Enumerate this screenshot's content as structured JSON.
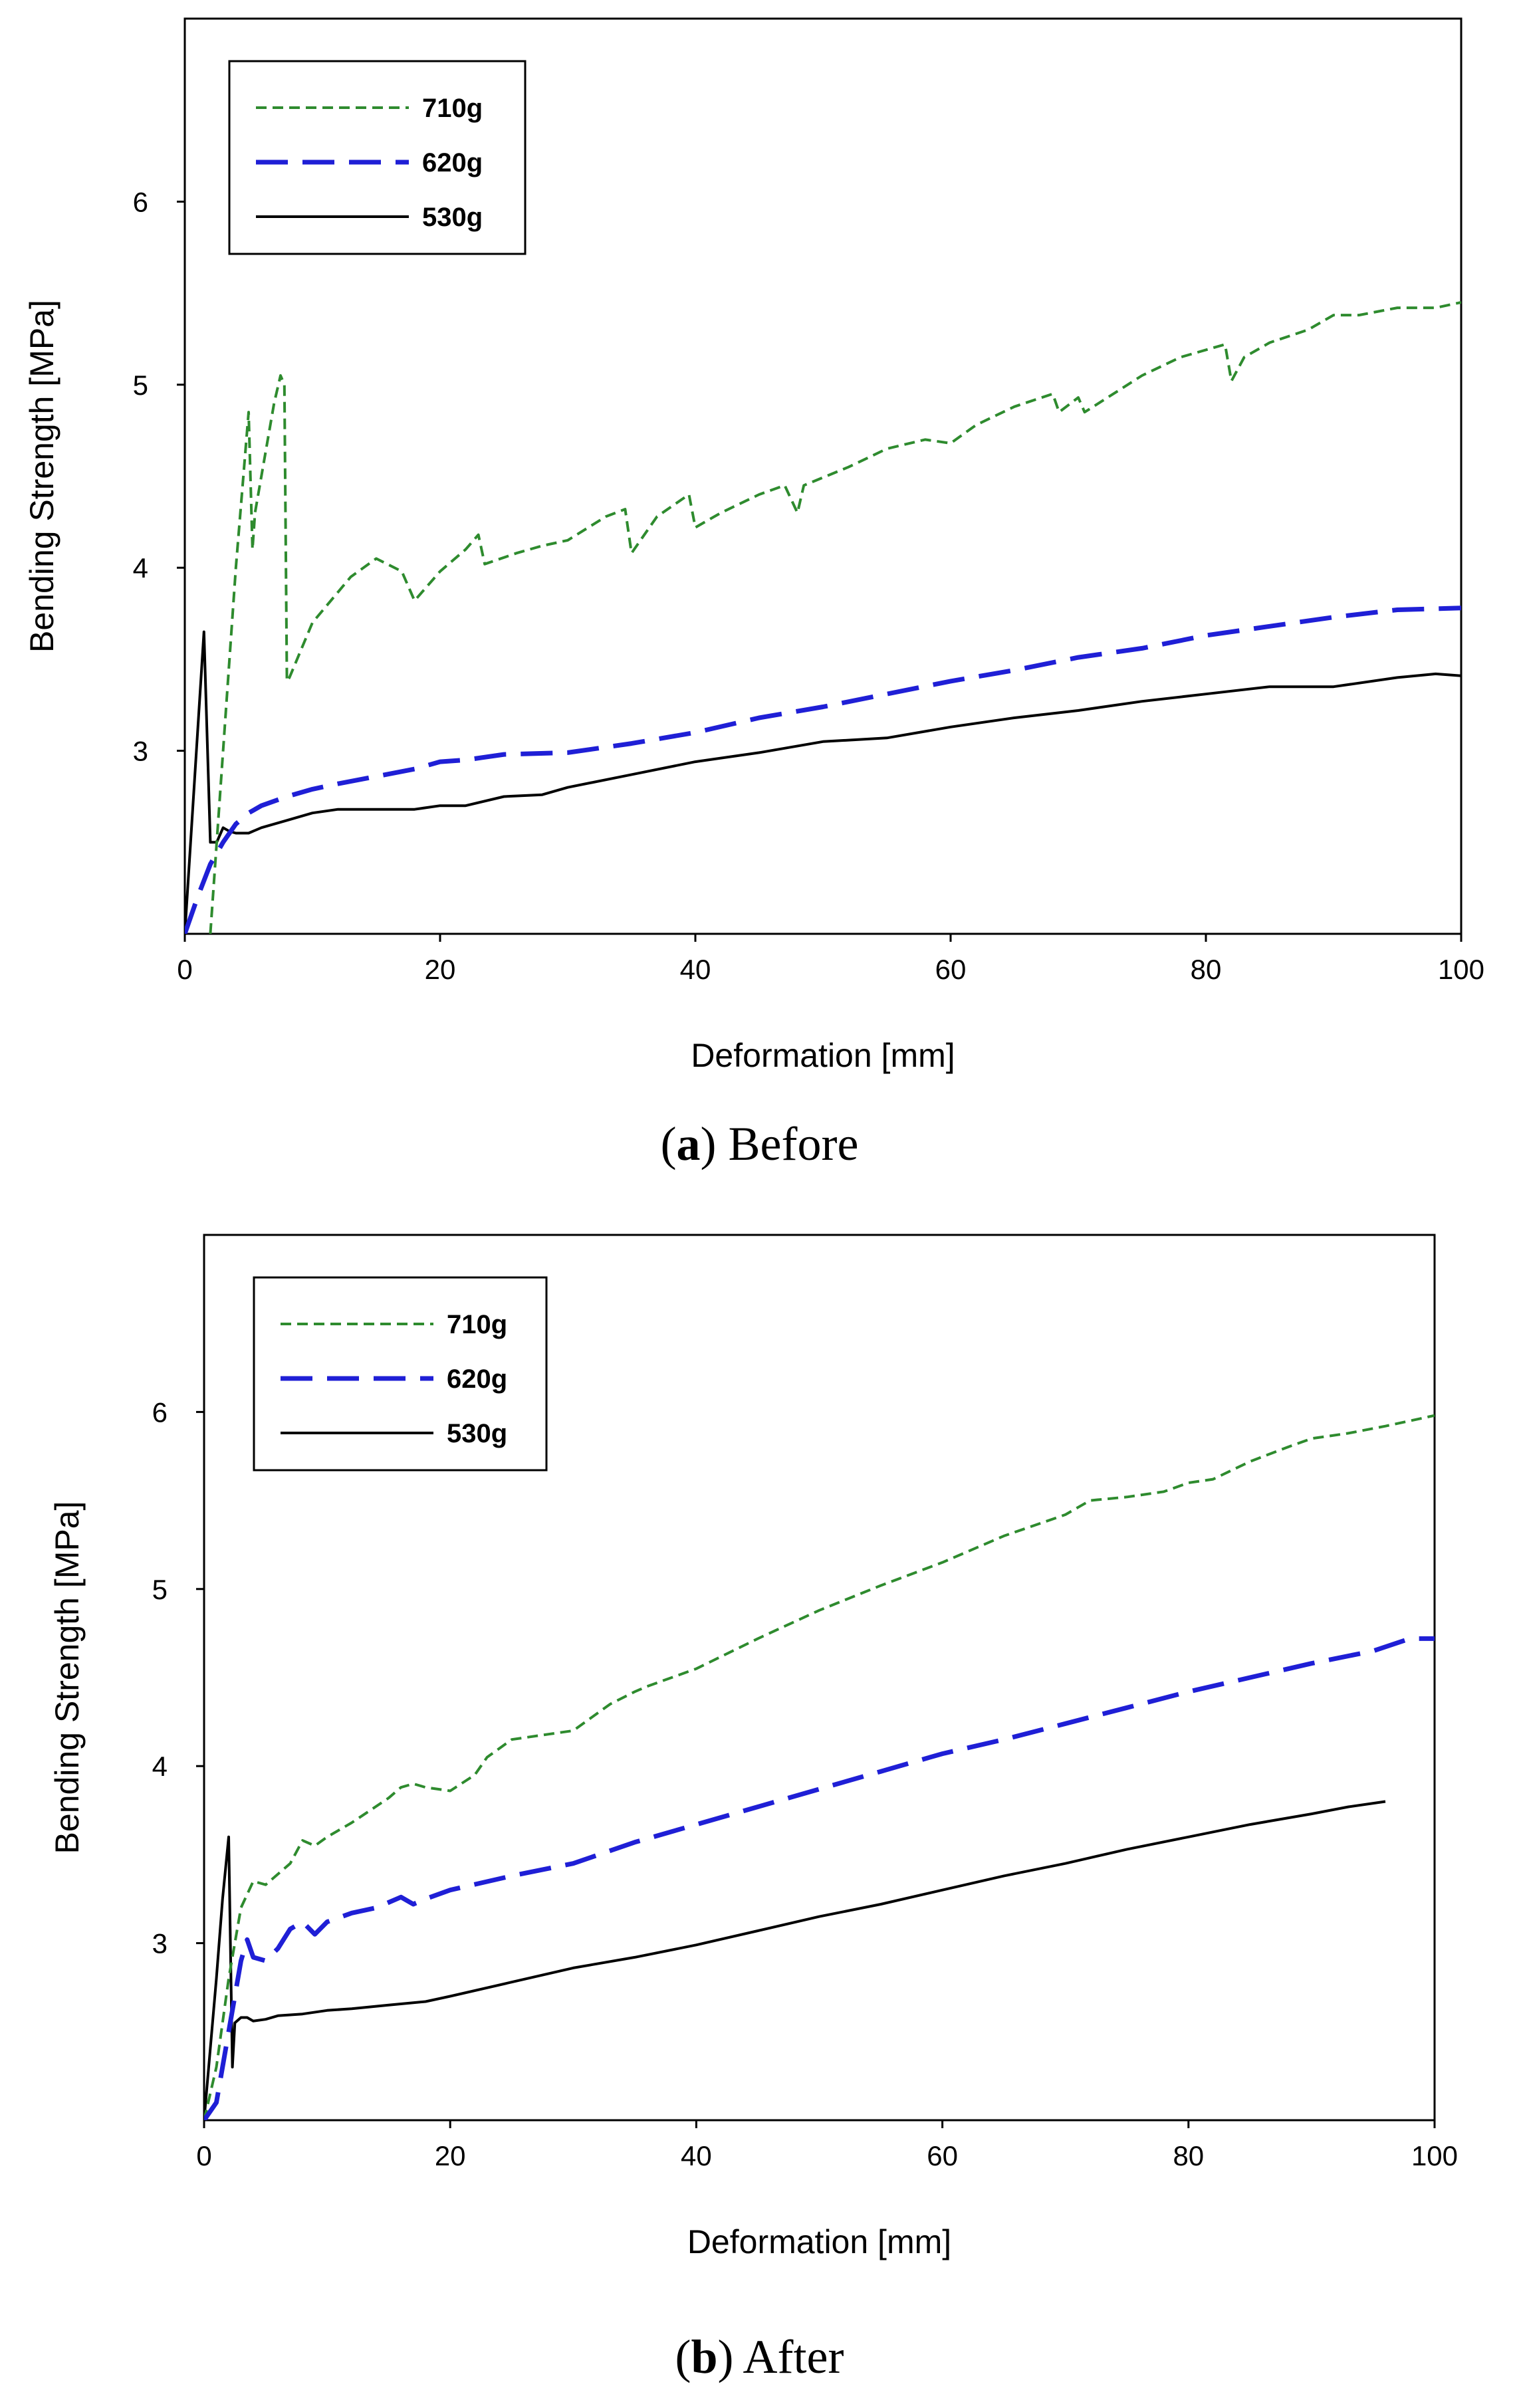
{
  "chart_data": [
    {
      "type": "line",
      "caption_letter": "a",
      "caption_text": " Before",
      "xlabel": "Deformation [mm]",
      "ylabel": "Bending Strength [MPa]",
      "xlim": [
        0,
        100
      ],
      "ylim": [
        2,
        7
      ],
      "xticks": [
        0,
        20,
        40,
        60,
        80,
        100
      ],
      "yticks": [
        3,
        4,
        5,
        6
      ],
      "legend_position": "top-left",
      "series": [
        {
          "name": "710g",
          "color": "#2e8b2e",
          "style": "dashed-fine",
          "x": [
            2,
            3,
            4,
            5,
            5.3,
            5.5,
            6,
            7,
            7.5,
            7.8,
            8,
            8.2,
            10,
            13,
            15,
            17,
            18,
            20,
            22,
            23,
            23.5,
            26,
            28,
            30,
            33,
            34.5,
            35,
            37,
            39.5,
            40,
            42,
            45,
            47,
            48,
            48.5,
            52,
            55,
            58,
            60,
            62,
            65,
            68,
            68.5,
            70,
            70.5,
            75,
            78,
            81.5,
            82,
            83,
            85,
            88,
            90,
            92,
            95,
            98,
            100
          ],
          "y": [
            2.0,
            3.0,
            4.0,
            4.85,
            4.1,
            4.3,
            4.5,
            4.9,
            5.05,
            5.0,
            3.38,
            3.4,
            3.7,
            3.95,
            4.05,
            3.98,
            3.82,
            3.98,
            4.1,
            4.18,
            4.02,
            4.08,
            4.12,
            4.15,
            4.28,
            4.32,
            4.08,
            4.28,
            4.4,
            4.22,
            4.3,
            4.4,
            4.45,
            4.3,
            4.45,
            4.55,
            4.65,
            4.7,
            4.68,
            4.78,
            4.88,
            4.95,
            4.85,
            4.93,
            4.85,
            5.05,
            5.15,
            5.22,
            5.02,
            5.15,
            5.23,
            5.3,
            5.38,
            5.38,
            5.42,
            5.42,
            5.45
          ]
        },
        {
          "name": "620g",
          "color": "#1f1fd6",
          "style": "dashed-long",
          "x": [
            0,
            1,
            2,
            3,
            4,
            5,
            6,
            8,
            10,
            12,
            15,
            18,
            20,
            22,
            25,
            30,
            35,
            40,
            45,
            50,
            55,
            60,
            65,
            70,
            75,
            80,
            85,
            90,
            95,
            100
          ],
          "y": [
            2.0,
            2.2,
            2.38,
            2.5,
            2.6,
            2.66,
            2.7,
            2.75,
            2.79,
            2.82,
            2.86,
            2.9,
            2.94,
            2.95,
            2.98,
            2.99,
            3.04,
            3.1,
            3.18,
            3.24,
            3.31,
            3.38,
            3.44,
            3.51,
            3.56,
            3.63,
            3.68,
            3.73,
            3.77,
            3.78
          ]
        },
        {
          "name": "530g",
          "color": "#000000",
          "style": "solid",
          "x": [
            0,
            1,
            1.5,
            2,
            2.5,
            3,
            3.5,
            4,
            5,
            6,
            8,
            10,
            12,
            15,
            18,
            20,
            22,
            25,
            28,
            30,
            35,
            40,
            45,
            50,
            55,
            60,
            65,
            70,
            75,
            80,
            85,
            90,
            95,
            98,
            100
          ],
          "y": [
            2.0,
            3.1,
            3.65,
            2.5,
            2.5,
            2.58,
            2.56,
            2.55,
            2.55,
            2.58,
            2.62,
            2.66,
            2.68,
            2.68,
            2.68,
            2.7,
            2.7,
            2.75,
            2.76,
            2.8,
            2.87,
            2.94,
            2.99,
            3.05,
            3.07,
            3.13,
            3.18,
            3.22,
            3.27,
            3.31,
            3.35,
            3.35,
            3.4,
            3.42,
            3.41
          ]
        }
      ]
    },
    {
      "type": "line",
      "caption_letter": "b",
      "caption_text": " After",
      "xlabel": "Deformation [mm]",
      "ylabel": "Bending Strength [MPa]",
      "xlim": [
        0,
        100
      ],
      "ylim": [
        2,
        7
      ],
      "xticks": [
        0,
        20,
        40,
        60,
        80,
        100
      ],
      "yticks": [
        3,
        4,
        5,
        6
      ],
      "legend_position": "top-left",
      "series": [
        {
          "name": "710g",
          "color": "#2e8b2e",
          "style": "dashed-fine",
          "x": [
            0,
            1,
            2,
            3,
            4,
            5,
            7,
            8,
            9,
            10,
            12,
            15,
            16,
            17,
            18,
            20,
            22,
            23,
            25,
            28,
            30,
            33,
            35,
            36,
            40,
            45,
            50,
            55,
            60,
            65,
            70,
            72,
            75,
            78,
            80,
            82,
            85,
            88,
            90,
            93,
            96,
            100
          ],
          "y": [
            2.0,
            2.3,
            2.8,
            3.2,
            3.35,
            3.33,
            3.45,
            3.58,
            3.55,
            3.6,
            3.68,
            3.82,
            3.88,
            3.9,
            3.88,
            3.86,
            3.95,
            4.05,
            4.15,
            4.18,
            4.2,
            4.35,
            4.42,
            4.45,
            4.55,
            4.72,
            4.88,
            5.02,
            5.15,
            5.3,
            5.42,
            5.5,
            5.52,
            5.55,
            5.6,
            5.62,
            5.72,
            5.8,
            5.85,
            5.88,
            5.92,
            5.98
          ]
        },
        {
          "name": "620g",
          "color": "#1f1fd6",
          "style": "dashed-long",
          "x": [
            0,
            1,
            2,
            3,
            3.5,
            4,
            5,
            6,
            7,
            8,
            9,
            10,
            12,
            14,
            16,
            17,
            18,
            20,
            25,
            30,
            35,
            40,
            45,
            50,
            55,
            60,
            65,
            70,
            75,
            80,
            85,
            90,
            95,
            98,
            100
          ],
          "y": [
            2.0,
            2.1,
            2.5,
            2.9,
            3.02,
            2.92,
            2.9,
            2.97,
            3.08,
            3.12,
            3.05,
            3.12,
            3.17,
            3.2,
            3.26,
            3.22,
            3.25,
            3.3,
            3.38,
            3.45,
            3.57,
            3.67,
            3.77,
            3.87,
            3.97,
            4.07,
            4.15,
            4.24,
            4.33,
            4.42,
            4.5,
            4.58,
            4.65,
            4.72,
            4.72
          ]
        },
        {
          "name": "530g",
          "color": "#000000",
          "style": "solid",
          "x": [
            0,
            1,
            1.5,
            2,
            2.3,
            2.5,
            3,
            3.5,
            4,
            5,
            6,
            8,
            10,
            12,
            15,
            18,
            20,
            25,
            30,
            35,
            40,
            45,
            50,
            55,
            60,
            65,
            70,
            75,
            80,
            85,
            90,
            93,
            96
          ],
          "y": [
            2.0,
            2.8,
            3.25,
            3.6,
            2.3,
            2.55,
            2.58,
            2.58,
            2.56,
            2.57,
            2.59,
            2.6,
            2.62,
            2.63,
            2.65,
            2.67,
            2.7,
            2.78,
            2.86,
            2.92,
            2.99,
            3.07,
            3.15,
            3.22,
            3.3,
            3.38,
            3.45,
            3.53,
            3.6,
            3.67,
            3.73,
            3.77,
            3.8
          ]
        }
      ]
    }
  ]
}
